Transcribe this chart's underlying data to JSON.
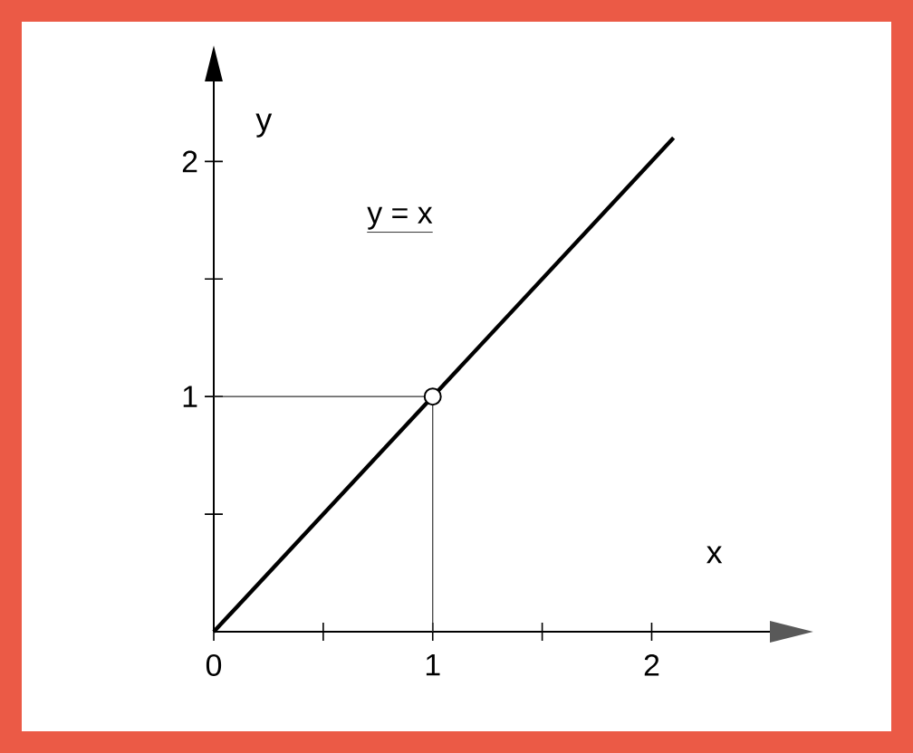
{
  "chart_data": {
    "type": "line",
    "xlabel": "x",
    "ylabel": "y",
    "annotations": [
      "y = x"
    ],
    "xlim": [
      0,
      2.54
    ],
    "ylim": [
      0,
      2.34
    ],
    "xticks": [
      {
        "value": 0,
        "label": "0"
      },
      {
        "value": 0.5,
        "label": null
      },
      1,
      {
        "value": 1.5,
        "label": null
      },
      2
    ],
    "yticks": [
      {
        "value": 0.5,
        "label": null
      },
      1,
      {
        "value": 1.5,
        "label": null
      },
      2
    ],
    "series": [
      {
        "x": [
          0,
          2.1
        ],
        "values": [
          0,
          2.1
        ],
        "color": "#000000"
      },
      {
        "type": "line",
        "x": [
          0,
          1,
          1
        ],
        "values": [
          1,
          1,
          0
        ],
        "color": "#333333"
      },
      {
        "type": "scatter",
        "x": [
          1
        ],
        "values": [
          1
        ],
        "color": "#000000"
      }
    ]
  }
}
